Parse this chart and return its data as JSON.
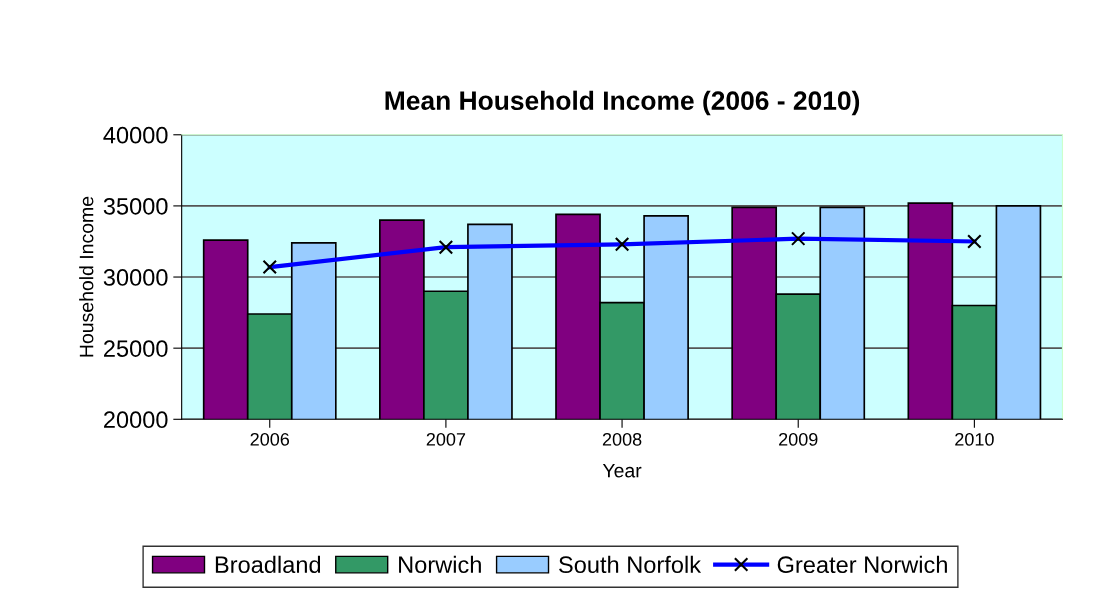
{
  "chart_data": {
    "type": "bar",
    "title": "Mean Household Income (2006 - 2010)",
    "xlabel": "Year",
    "ylabel": "Household Income",
    "categories": [
      "2006",
      "2007",
      "2008",
      "2009",
      "2010"
    ],
    "series": [
      {
        "name": "Broadland",
        "color": "#800080",
        "values": [
          32600,
          34000,
          34400,
          34900,
          35200
        ]
      },
      {
        "name": "Norwich",
        "color": "#339966",
        "values": [
          27400,
          29000,
          28200,
          28800,
          28000
        ]
      },
      {
        "name": "South Norfolk",
        "color": "#99ccff",
        "values": [
          32400,
          33700,
          34300,
          34900,
          35000
        ]
      },
      {
        "name": "Greater Norwich",
        "type": "line",
        "color": "#0000ff",
        "marker": "cross",
        "values": [
          30700,
          32100,
          32300,
          32700,
          32500
        ]
      }
    ],
    "ylim": [
      20000,
      40000
    ],
    "yticks": [
      20000,
      25000,
      30000,
      35000,
      40000
    ],
    "grid": "y",
    "legend": "bottom"
  }
}
